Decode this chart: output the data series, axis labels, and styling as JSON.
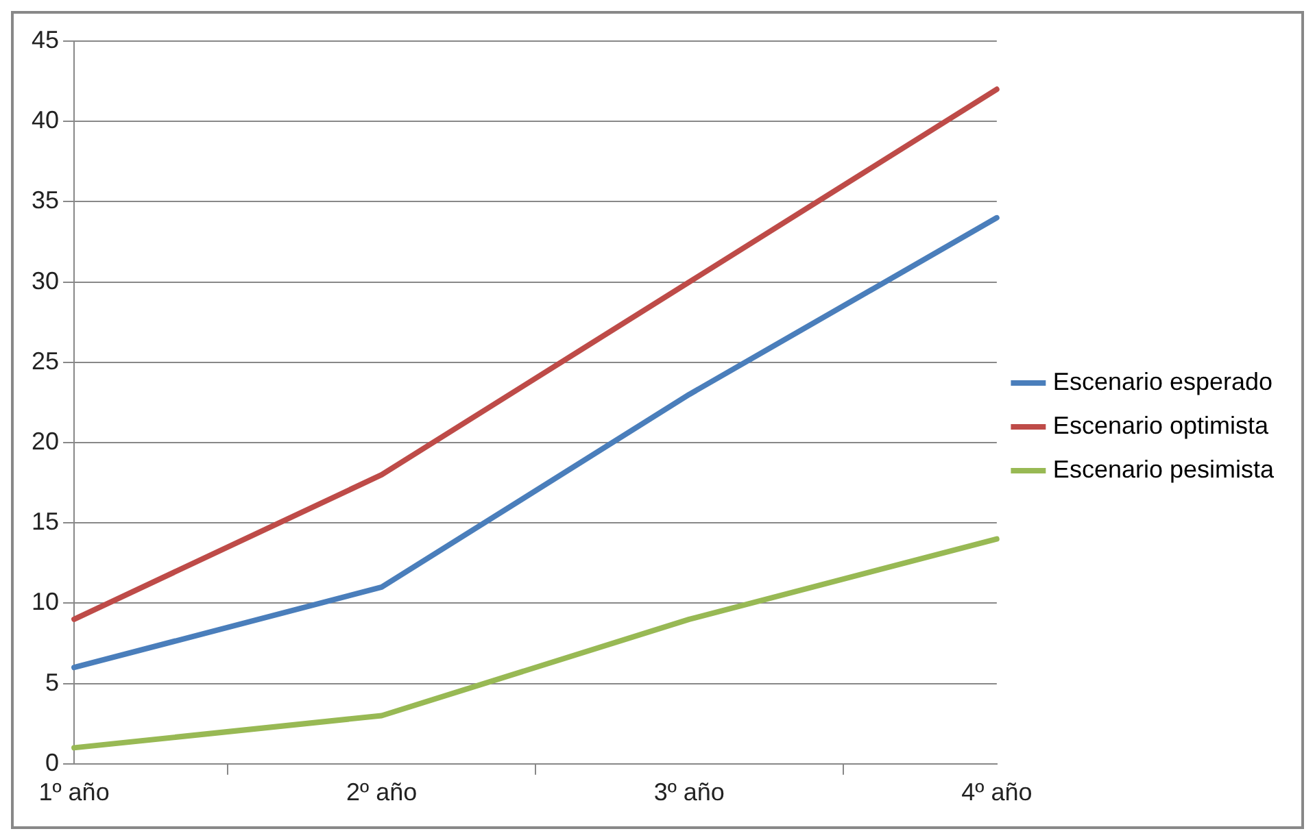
{
  "chart_data": {
    "type": "line",
    "categories": [
      "1º año",
      "2º año",
      "3º año",
      "4º año"
    ],
    "series": [
      {
        "name": "Escenario esperado",
        "color": "#4a7ebb",
        "values": [
          6,
          11,
          23,
          34
        ]
      },
      {
        "name": "Escenario optimista",
        "color": "#be4b48",
        "values": [
          9,
          18,
          30,
          42
        ]
      },
      {
        "name": "Escenario pesimista",
        "color": "#98b954",
        "values": [
          1,
          3,
          9,
          14
        ]
      }
    ],
    "ylim": [
      0,
      45
    ],
    "yticks": [
      0,
      5,
      10,
      15,
      20,
      25,
      30,
      35,
      40,
      45
    ],
    "grid": "y",
    "legend": "right",
    "marker": "none",
    "line_style": "solid"
  }
}
